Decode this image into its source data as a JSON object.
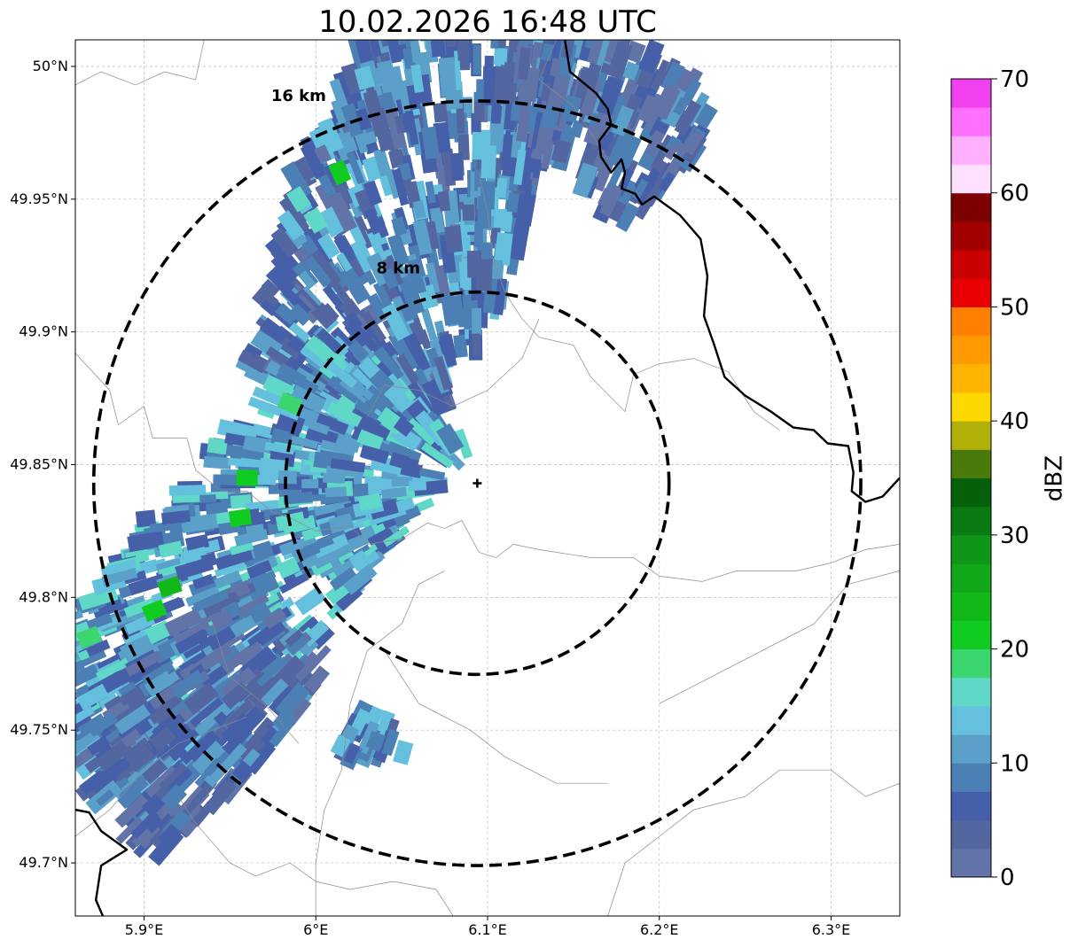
{
  "title": "10.02.2026 16:48 UTC",
  "map": {
    "lon_range": [
      5.86,
      6.34
    ],
    "lat_range": [
      49.68,
      50.01
    ],
    "x_ticks": [
      {
        "value": 5.9,
        "label": "5.9°E"
      },
      {
        "value": 6.0,
        "label": "6°E"
      },
      {
        "value": 6.1,
        "label": "6.1°E"
      },
      {
        "value": 6.2,
        "label": "6.2°E"
      },
      {
        "value": 6.3,
        "label": "6.3°E"
      }
    ],
    "y_ticks": [
      {
        "value": 50.0,
        "label": "50°N"
      },
      {
        "value": 49.95,
        "label": "49.95°N"
      },
      {
        "value": 49.9,
        "label": "49.9°N"
      },
      {
        "value": 49.85,
        "label": "49.85°N"
      },
      {
        "value": 49.8,
        "label": "49.8°N"
      },
      {
        "value": 49.75,
        "label": "49.75°N"
      },
      {
        "value": 49.7,
        "label": "49.7°N"
      }
    ],
    "grid": true,
    "radar_site": {
      "lon": 6.094,
      "lat": 49.843
    },
    "rings": [
      {
        "label": "8 km",
        "radius_lat": 0.072,
        "label_lon": 6.048,
        "label_lat": 49.922
      },
      {
        "label": "16 km",
        "radius_lat": 0.144,
        "label_lon": 5.99,
        "label_lat": 49.987
      }
    ],
    "echo_bands": [
      {
        "name": "north-band",
        "lon1": 6.1,
        "lat1": 50.02,
        "lon2": 6.01,
        "lat2": 49.87,
        "width_lat": 0.045,
        "mean_dbz": 8
      },
      {
        "name": "southwest-band",
        "lon1": 6.05,
        "lat1": 49.88,
        "lon2": 5.86,
        "lat2": 49.74,
        "width_lat": 0.04,
        "mean_dbz": 11
      },
      {
        "name": "northeast-band",
        "lon1": 6.13,
        "lat1": 50.01,
        "lon2": 6.21,
        "lat2": 49.96,
        "width_lat": 0.03,
        "mean_dbz": 5
      },
      {
        "name": "southwest-tail",
        "lon1": 5.98,
        "lat1": 49.79,
        "lon2": 5.88,
        "lat2": 49.72,
        "width_lat": 0.03,
        "mean_dbz": 6
      },
      {
        "name": "small-cell",
        "lon1": 6.02,
        "lat1": 49.752,
        "lon2": 6.048,
        "lat2": 49.737,
        "width_lat": 0.01,
        "mean_dbz": 10
      }
    ],
    "echo_cores": [
      {
        "lon": 6.014,
        "lat": 49.96,
        "dbz": 21
      },
      {
        "lon": 5.956,
        "lat": 49.83,
        "dbz": 22
      },
      {
        "lon": 5.96,
        "lat": 49.845,
        "dbz": 21
      },
      {
        "lon": 5.915,
        "lat": 49.804,
        "dbz": 23
      },
      {
        "lon": 5.906,
        "lat": 49.795,
        "dbz": 20
      },
      {
        "lon": 5.868,
        "lat": 49.785,
        "dbz": 19
      },
      {
        "lon": 5.985,
        "lat": 49.873,
        "dbz": 18
      },
      {
        "lon": 6.0,
        "lat": 49.942,
        "dbz": 17
      },
      {
        "lon": 5.99,
        "lat": 49.95,
        "dbz": 16
      }
    ],
    "country_border": [
      {
        "name": "border-north",
        "points": [
          [
            6.145,
            50.01
          ],
          [
            6.148,
            49.998
          ],
          [
            6.163,
            49.99
          ],
          [
            6.17,
            49.984
          ],
          [
            6.172,
            49.978
          ],
          [
            6.165,
            49.972
          ],
          [
            6.166,
            49.966
          ],
          [
            6.172,
            49.96
          ],
          [
            6.178,
            49.965
          ],
          [
            6.18,
            49.96
          ],
          [
            6.178,
            49.954
          ],
          [
            6.186,
            49.952
          ],
          [
            6.19,
            49.948
          ],
          [
            6.197,
            49.951
          ],
          [
            6.212,
            49.944
          ],
          [
            6.224,
            49.935
          ],
          [
            6.228,
            49.921
          ],
          [
            6.226,
            49.906
          ],
          [
            6.232,
            49.895
          ],
          [
            6.238,
            49.883
          ],
          [
            6.25,
            49.876
          ],
          [
            6.265,
            49.87
          ],
          [
            6.278,
            49.864
          ],
          [
            6.29,
            49.863
          ],
          [
            6.298,
            49.858
          ],
          [
            6.31,
            49.857
          ],
          [
            6.313,
            49.847
          ],
          [
            6.312,
            49.84
          ],
          [
            6.32,
            49.836
          ],
          [
            6.33,
            49.838
          ],
          [
            6.34,
            49.845
          ]
        ]
      },
      {
        "name": "border-southwest",
        "points": [
          [
            5.86,
            49.72
          ],
          [
            5.868,
            49.719
          ],
          [
            5.875,
            49.712
          ],
          [
            5.89,
            49.705
          ],
          [
            5.875,
            49.699
          ],
          [
            5.872,
            49.686
          ],
          [
            5.876,
            49.68
          ]
        ]
      }
    ],
    "admin_lines": [
      {
        "name": "admin-1",
        "points": [
          [
            5.86,
            49.993
          ],
          [
            5.875,
            49.998
          ],
          [
            5.895,
            49.993
          ],
          [
            5.912,
            49.998
          ],
          [
            5.93,
            49.995
          ],
          [
            5.935,
            50.01
          ]
        ]
      },
      {
        "name": "admin-2",
        "points": [
          [
            5.86,
            49.892
          ],
          [
            5.88,
            49.878
          ],
          [
            5.885,
            49.865
          ],
          [
            5.9,
            49.872
          ],
          [
            5.905,
            49.86
          ],
          [
            5.925,
            49.86
          ],
          [
            5.93,
            49.848
          ],
          [
            5.945,
            49.84
          ],
          [
            5.96,
            49.84
          ],
          [
            5.975,
            49.832
          ],
          [
            5.985,
            49.83
          ],
          [
            6.0,
            49.825
          ],
          [
            6.02,
            49.827
          ],
          [
            6.03,
            49.82
          ],
          [
            6.05,
            49.822
          ],
          [
            6.065,
            49.828
          ],
          [
            6.075,
            49.826
          ],
          [
            6.085,
            49.829
          ],
          [
            6.095,
            49.817
          ],
          [
            6.105,
            49.815
          ],
          [
            6.115,
            49.82
          ],
          [
            6.13,
            49.818
          ],
          [
            6.16,
            49.815
          ],
          [
            6.185,
            49.815
          ],
          [
            6.2,
            49.808
          ],
          [
            6.225,
            49.806
          ],
          [
            6.245,
            49.81
          ],
          [
            6.265,
            49.81
          ],
          [
            6.28,
            49.81
          ],
          [
            6.3,
            49.813
          ],
          [
            6.32,
            49.818
          ],
          [
            6.34,
            49.82
          ]
        ]
      },
      {
        "name": "admin-3",
        "points": [
          [
            6.095,
            49.96
          ],
          [
            6.1,
            49.945
          ],
          [
            6.103,
            49.928
          ],
          [
            6.11,
            49.915
          ],
          [
            6.12,
            49.905
          ],
          [
            6.13,
            49.898
          ],
          [
            6.15,
            49.895
          ],
          [
            6.16,
            49.883
          ],
          [
            6.18,
            49.87
          ],
          [
            6.185,
            49.884
          ],
          [
            6.2,
            49.888
          ],
          [
            6.22,
            49.89
          ],
          [
            6.24,
            49.885
          ],
          [
            6.255,
            49.87
          ],
          [
            6.27,
            49.863
          ]
        ]
      },
      {
        "name": "admin-4",
        "points": [
          [
            6.14,
            50.01
          ],
          [
            6.13,
            49.995
          ],
          [
            6.15,
            49.985
          ],
          [
            6.16,
            49.975
          ],
          [
            6.17,
            49.965
          ]
        ]
      },
      {
        "name": "admin-5",
        "points": [
          [
            6.03,
            49.868
          ],
          [
            6.04,
            49.88
          ],
          [
            6.06,
            49.878
          ],
          [
            6.08,
            49.872
          ],
          [
            6.1,
            49.878
          ],
          [
            6.12,
            49.89
          ],
          [
            6.13,
            49.905
          ]
        ]
      },
      {
        "name": "admin-6",
        "points": [
          [
            5.92,
            49.725
          ],
          [
            5.93,
            49.715
          ],
          [
            5.95,
            49.7
          ],
          [
            5.965,
            49.695
          ],
          [
            5.985,
            49.7
          ],
          [
            6.0,
            49.693
          ],
          [
            6.02,
            49.69
          ],
          [
            6.045,
            49.693
          ],
          [
            6.07,
            49.69
          ],
          [
            6.08,
            49.68
          ]
        ]
      },
      {
        "name": "admin-7",
        "points": [
          [
            6.0,
            49.68
          ],
          [
            6.0,
            49.7
          ],
          [
            6.005,
            49.72
          ],
          [
            6.015,
            49.735
          ],
          [
            6.02,
            49.76
          ],
          [
            6.03,
            49.78
          ],
          [
            6.05,
            49.79
          ],
          [
            6.06,
            49.805
          ],
          [
            6.075,
            49.81
          ]
        ]
      },
      {
        "name": "admin-8",
        "points": [
          [
            6.17,
            49.68
          ],
          [
            6.18,
            49.7
          ],
          [
            6.2,
            49.71
          ],
          [
            6.22,
            49.72
          ],
          [
            6.25,
            49.725
          ],
          [
            6.27,
            49.735
          ],
          [
            6.3,
            49.735
          ],
          [
            6.32,
            49.725
          ],
          [
            6.34,
            49.73
          ]
        ]
      },
      {
        "name": "admin-9",
        "points": [
          [
            6.2,
            49.76
          ],
          [
            6.23,
            49.77
          ],
          [
            6.26,
            49.78
          ],
          [
            6.29,
            49.79
          ],
          [
            6.31,
            49.805
          ],
          [
            6.34,
            49.81
          ]
        ]
      },
      {
        "name": "admin-10",
        "points": [
          [
            6.04,
            49.78
          ],
          [
            6.06,
            49.76
          ],
          [
            6.09,
            49.75
          ],
          [
            6.11,
            49.74
          ],
          [
            6.14,
            49.73
          ],
          [
            6.17,
            49.73
          ]
        ]
      },
      {
        "name": "admin-11",
        "points": [
          [
            5.86,
            49.71
          ],
          [
            5.88,
            49.72
          ],
          [
            5.9,
            49.735
          ],
          [
            5.92,
            49.745
          ],
          [
            5.94,
            49.75
          ],
          [
            5.96,
            49.755
          ]
        ]
      },
      {
        "name": "admin-12",
        "points": [
          [
            5.94,
            49.79
          ],
          [
            5.95,
            49.77
          ],
          [
            5.97,
            49.76
          ],
          [
            5.99,
            49.745
          ]
        ]
      }
    ]
  },
  "colorbar": {
    "label": "dBZ",
    "min": 0,
    "max": 70,
    "step": 2.5,
    "ticks": [
      {
        "value": 0,
        "label": "0"
      },
      {
        "value": 10,
        "label": "10"
      },
      {
        "value": 20,
        "label": "20"
      },
      {
        "value": 30,
        "label": "30"
      },
      {
        "value": 40,
        "label": "40"
      },
      {
        "value": 50,
        "label": "50"
      },
      {
        "value": 60,
        "label": "60"
      },
      {
        "value": 70,
        "label": "70"
      }
    ],
    "colors": [
      "#6273a8",
      "#5466a0",
      "#4560a8",
      "#4c7fb4",
      "#5aa0c8",
      "#64c0dc",
      "#60d8c8",
      "#3cd670",
      "#10cc20",
      "#12b818",
      "#10a818",
      "#0e9618",
      "#0a7a12",
      "#05600c",
      "#4a7a0a",
      "#b0b008",
      "#ffd800",
      "#ffb400",
      "#ff9a00",
      "#ff8000",
      "#e80000",
      "#c80000",
      "#a00000",
      "#7c0000",
      "#ffe0ff",
      "#ffb0ff",
      "#ff70ff",
      "#f040f0"
    ]
  }
}
